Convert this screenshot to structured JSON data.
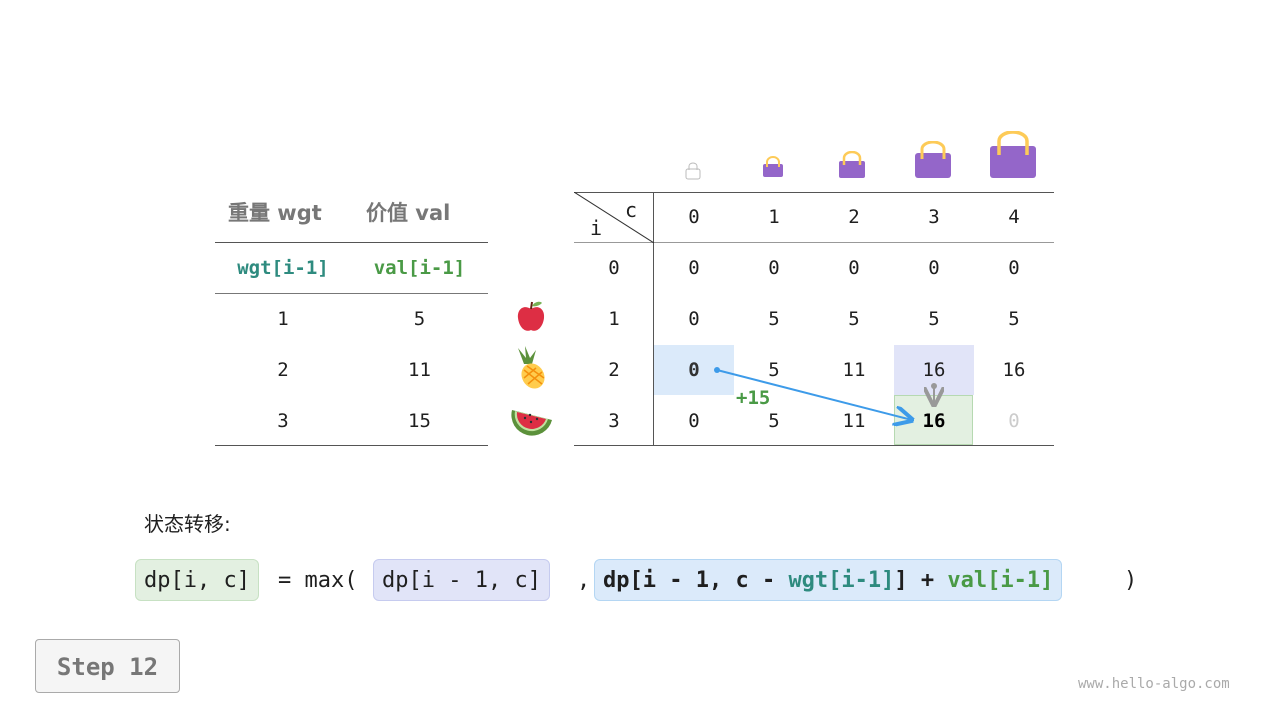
{
  "items_table": {
    "headers": [
      "重量 wgt",
      "价值 val"
    ],
    "subheaders": [
      "wgt[i-1]",
      "val[i-1]"
    ],
    "rows": [
      {
        "wgt": "1",
        "val": "5",
        "item": "apple-icon"
      },
      {
        "wgt": "2",
        "val": "11",
        "item": "pineapple-icon"
      },
      {
        "wgt": "3",
        "val": "15",
        "item": "watermelon-icon"
      }
    ]
  },
  "dp_table": {
    "corner_row": "i",
    "corner_col": "c",
    "capacities": [
      "0",
      "1",
      "2",
      "3",
      "4"
    ],
    "row_labels": [
      "0",
      "1",
      "2",
      "3"
    ],
    "cells": [
      [
        "0",
        "0",
        "0",
        "0",
        "0"
      ],
      [
        "0",
        "5",
        "5",
        "5",
        "5"
      ],
      [
        "0",
        "5",
        "11",
        "16",
        "16"
      ],
      [
        "0",
        "5",
        "11",
        "16",
        "0"
      ]
    ],
    "plus_label": "+15"
  },
  "colors": {
    "blue": "#dbeafa",
    "lavender": "#e1e4f8",
    "green": "#e3f0e1",
    "arrow": "#3d9be9",
    "teal": "#2e8b7f",
    "valgreen": "#4a9a46",
    "bag": "#9466c9"
  },
  "formula": {
    "title": "状态转移:",
    "lhs": "dp[i, c]",
    "eq": "= max(",
    "a": "dp[i - 1, c]",
    "comma": ",",
    "b1": "dp[i - 1, c - ",
    "b2": "wgt[i-1]",
    "b3": "] + ",
    "b4": "val[i-1]",
    "close": ")"
  },
  "step": "Step 12",
  "watermark": "www.hello-algo.com"
}
